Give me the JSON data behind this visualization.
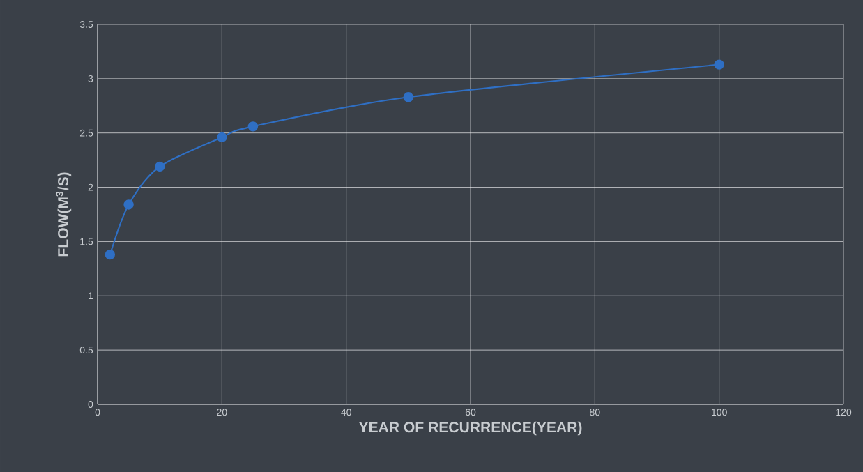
{
  "chart_data": {
    "type": "line",
    "xlabel": "YEAR OF RECURRENCE(YEAR)",
    "ylabel": "FLOW(M$^{3}$/S)",
    "x": [
      2,
      5,
      10,
      20,
      25,
      50,
      100
    ],
    "series": [
      {
        "color": "#2f6fc4",
        "values": [
          1.38,
          1.84,
          2.19,
          2.46,
          2.56,
          2.83,
          3.13
        ]
      }
    ],
    "xlim": [
      0,
      120
    ],
    "xticks": [
      0,
      20,
      40,
      60,
      80,
      100,
      120
    ],
    "ylim": [
      0,
      3.5
    ],
    "yticks": [
      0,
      0.5,
      1,
      1.5,
      2,
      2.5,
      3,
      3.5
    ],
    "grid": true,
    "marker": "circle",
    "line_style": "solid"
  }
}
